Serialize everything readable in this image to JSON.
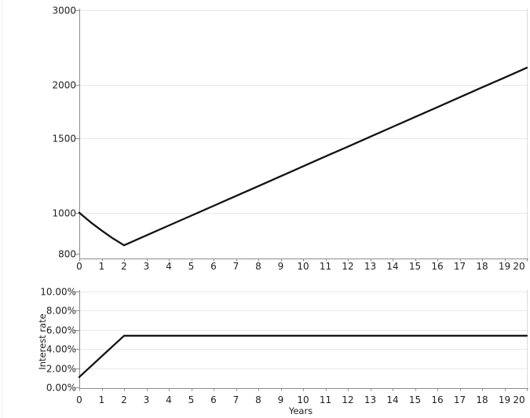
{
  "colors": {
    "background": "#ffffff",
    "line": "#121212",
    "axis": "#8c8c8c",
    "grid": "#e9e9e9",
    "plot_border": "#dcdcdc",
    "text": "#1f1f1f"
  },
  "chart_data": [
    {
      "id": "portfolio-value-chart",
      "type": "line",
      "title": "",
      "xlabel": "",
      "ylabel": "",
      "x_scale": "linear",
      "y_scale": "log",
      "xlim": [
        0,
        20
      ],
      "ylim": [
        780,
        3100
      ],
      "grid": "horizontal",
      "legend": "none",
      "x_ticks": [
        "0",
        "1",
        "2",
        "3",
        "4",
        "5",
        "6",
        "7",
        "8",
        "9",
        "10",
        "11",
        "12",
        "13",
        "14",
        "15",
        "16",
        "17",
        "18",
        "19",
        "20"
      ],
      "y_ticks": [
        {
          "value": 800,
          "label": "800",
          "grid": false
        },
        {
          "value": 1000,
          "label": "1000",
          "grid": true
        },
        {
          "value": 1500,
          "label": "1500",
          "grid": true
        },
        {
          "value": 2000,
          "label": "2000",
          "grid": true
        },
        {
          "value": 3000,
          "label": "3000",
          "grid": true
        }
      ],
      "series": [
        {
          "name": "portfolio-value",
          "x": [
            0,
            0.5,
            1,
            1.5,
            2,
            3,
            4,
            5,
            6,
            7,
            8,
            9,
            10,
            11,
            12,
            13,
            14,
            15,
            16,
            17,
            18,
            19,
            20
          ],
          "y": [
            1000,
            950,
            908,
            870,
            838,
            884,
            933,
            984,
            1038,
            1095,
            1155,
            1219,
            1286,
            1357,
            1431,
            1510,
            1593,
            1681,
            1773,
            1871,
            1974,
            2082,
            2196
          ]
        }
      ]
    },
    {
      "id": "interest-rate-chart",
      "type": "line",
      "title": "",
      "xlabel": "Years",
      "ylabel": "Interest rate",
      "x_scale": "linear",
      "y_scale": "linear",
      "xlim": [
        0,
        20
      ],
      "ylim": [
        0,
        10
      ],
      "grid": "horizontal",
      "legend": "none",
      "x_ticks": [
        "0",
        "1",
        "2",
        "3",
        "4",
        "5",
        "6",
        "7",
        "8",
        "9",
        "10",
        "11",
        "12",
        "13",
        "14",
        "15",
        "16",
        "17",
        "18",
        "19",
        "20"
      ],
      "y_ticks": [
        {
          "value": 0,
          "label": "0.00%",
          "grid": false
        },
        {
          "value": 2,
          "label": "2.00%",
          "grid": true
        },
        {
          "value": 4,
          "label": "4.00%",
          "grid": true
        },
        {
          "value": 6,
          "label": "6.00%",
          "grid": true
        },
        {
          "value": 8,
          "label": "8.00%",
          "grid": true
        },
        {
          "value": 10,
          "label": "10.00%",
          "grid": true
        }
      ],
      "series": [
        {
          "name": "interest-rate",
          "x": [
            0,
            2,
            20
          ],
          "y": [
            1.1,
            5.4,
            5.4
          ]
        }
      ]
    }
  ]
}
